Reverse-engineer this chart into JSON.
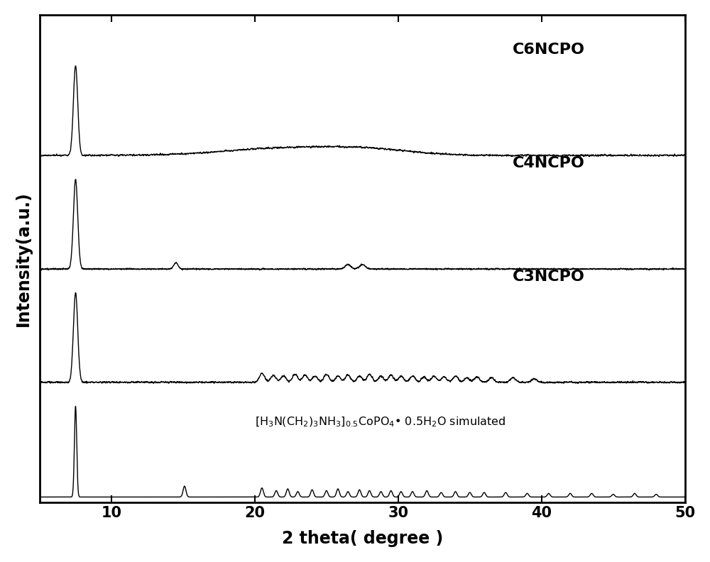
{
  "title": "",
  "xlabel": "2 theta( degree )",
  "ylabel": "Intensity(a.u.)",
  "xlim": [
    5,
    50
  ],
  "x_ticks": [
    10,
    20,
    30,
    40,
    50
  ],
  "labels": [
    "C6NCPO",
    "C4NCPO",
    "C3NCPO",
    "[H₃N(CH₂)₃NH₃]₀.₅CoPO₄• 0.5H₂O simulated"
  ],
  "offsets": [
    3.0,
    2.0,
    1.0,
    0.0
  ],
  "line_color": "#000000",
  "background_color": "#ffffff",
  "fig_width": 10.0,
  "fig_height": 7.92,
  "dpi": 100,
  "noise_seed": 42
}
